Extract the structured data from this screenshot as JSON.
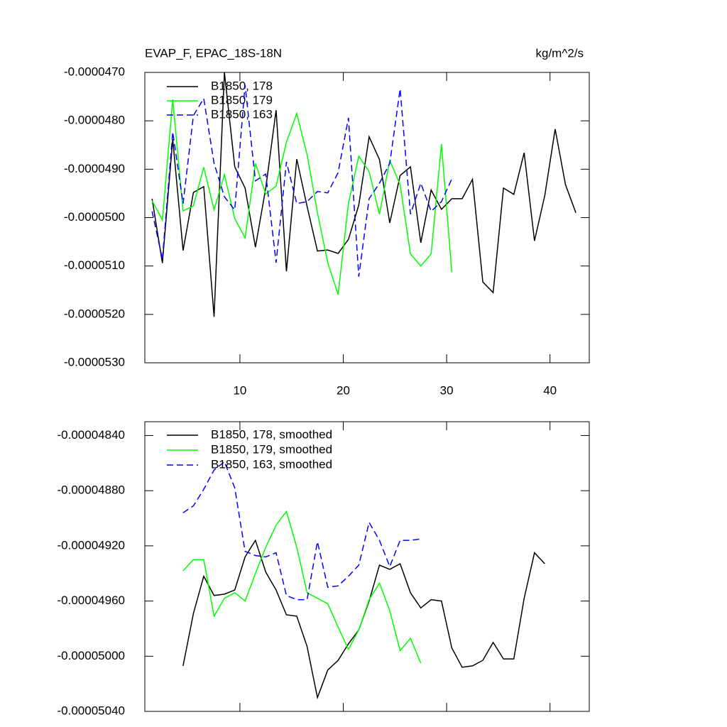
{
  "chart_data": [
    {
      "type": "line",
      "title": "EVAP_F, EPAC_18S-18N",
      "units": "kg/m^2/s",
      "x": [
        1.5,
        2.5,
        3.5,
        4.5,
        5.5,
        6.5,
        7.5,
        8.5,
        9.5,
        10.5,
        11.5,
        12.5,
        13.5,
        14.5,
        15.5,
        16.5,
        17.5,
        18.5,
        19.5,
        20.5,
        21.5,
        22.5,
        23.5,
        24.5,
        25.5,
        26.5,
        27.5,
        28.5,
        29.5,
        30.5,
        31.5,
        32.5,
        33.5,
        34.5,
        35.5,
        36.5,
        37.5,
        38.5,
        39.5,
        40.5,
        41.5,
        42.5
      ],
      "series": [
        {
          "name": "B1850, 178",
          "color": "#000000",
          "dash": false,
          "values": [
            -4.961e-05,
            -5.094e-05,
            -4.838e-05,
            -5.068e-05,
            -4.948e-05,
            -4.936e-05,
            -5.205e-05,
            -4.7e-05,
            -4.895e-05,
            -4.939e-05,
            -5.061e-05,
            -4.939e-05,
            -4.778e-05,
            -5.111e-05,
            -4.879e-05,
            -4.977e-05,
            -5.069e-05,
            -5.067e-05,
            -5.074e-05,
            -5.045e-05,
            -4.974e-05,
            -4.833e-05,
            -4.88e-05,
            -5.011e-05,
            -4.913e-05,
            -4.895e-05,
            -5.052e-05,
            -4.943e-05,
            -4.983e-05,
            -4.961e-05,
            -4.961e-05,
            -4.921e-05,
            -5.133e-05,
            -5.155e-05,
            -4.939e-05,
            -4.952e-05,
            -4.866e-05,
            -5.048e-05,
            -4.954e-05,
            -4.817e-05,
            -4.932e-05,
            -4.99e-05
          ]
        },
        {
          "name": "B1850, 179",
          "color": "#00ff00",
          "dash": false,
          "values": [
            -4.965e-05,
            -5.005e-05,
            -4.756e-05,
            -4.986e-05,
            -4.976e-05,
            -4.896e-05,
            -4.984e-05,
            -4.911e-05,
            -5.002e-05,
            -5.042e-05,
            -4.888e-05,
            -4.951e-05,
            -4.935e-05,
            -4.844e-05,
            -4.785e-05,
            -4.87e-05,
            -4.99e-05,
            -5.093e-05,
            -5.159e-05,
            -4.971e-05,
            -4.873e-05,
            -4.905e-05,
            -4.993e-05,
            -4.882e-05,
            -4.932e-05,
            -5.075e-05,
            -5.1e-05,
            -5.075e-05,
            -4.848e-05,
            -5.113e-05,
            null,
            null,
            null,
            null,
            null,
            null,
            null,
            null,
            null,
            null,
            null,
            null
          ]
        },
        {
          "name": "B1850, 163",
          "color": "#0000ff",
          "dash": true,
          "values": [
            -4.987e-05,
            -5.086e-05,
            -4.823e-05,
            -4.971e-05,
            -4.789e-05,
            -4.754e-05,
            -4.888e-05,
            -4.957e-05,
            -4.984e-05,
            -4.726e-05,
            -4.924e-05,
            -4.91e-05,
            -5.093e-05,
            -4.885e-05,
            -4.971e-05,
            -4.967e-05,
            -4.946e-05,
            -4.949e-05,
            -4.907e-05,
            -4.794e-05,
            -5.122e-05,
            -4.961e-05,
            -4.929e-05,
            -4.888e-05,
            -4.734e-05,
            -4.993e-05,
            -4.929e-05,
            -4.987e-05,
            -4.967e-05,
            -4.92e-05,
            null,
            null,
            null,
            null,
            null,
            null,
            null,
            null,
            null,
            null,
            null,
            null
          ]
        }
      ],
      "xlim": [
        0.8,
        43.8
      ],
      "xticks": [
        10,
        20,
        30,
        40
      ],
      "ylim": [
        -5.3e-05,
        -4.7e-05
      ],
      "yticks": [
        {
          "value": -5.3e-05,
          "label": "-0.0000530"
        },
        {
          "value": -5.2e-05,
          "label": "-0.0000520"
        },
        {
          "value": -5.1e-05,
          "label": "-0.0000510"
        },
        {
          "value": -5e-05,
          "label": "-0.0000500"
        },
        {
          "value": -4.9e-05,
          "label": "-0.0000490"
        },
        {
          "value": -4.8e-05,
          "label": "-0.0000480"
        },
        {
          "value": -4.7e-05,
          "label": "-0.0000470"
        }
      ],
      "legend": "top-left"
    },
    {
      "type": "line",
      "x": [
        4.5,
        5.5,
        6.5,
        7.5,
        8.5,
        9.5,
        10.5,
        11.5,
        12.5,
        13.5,
        14.5,
        15.5,
        16.5,
        17.5,
        18.5,
        19.5,
        20.5,
        21.5,
        22.5,
        23.5,
        24.5,
        25.5,
        26.5,
        27.5,
        28.5,
        29.5,
        30.5,
        31.5,
        32.5,
        33.5,
        34.5,
        35.5,
        36.5,
        37.5,
        38.5,
        39.5
      ],
      "series": [
        {
          "name": "B1850, 178, smoothed",
          "color": "#000000",
          "dash": false,
          "values": [
            -5.007e-05,
            -4.969e-05,
            -4.942e-05,
            -4.956e-05,
            -4.955e-05,
            -4.952e-05,
            -4.928e-05,
            -4.916e-05,
            -4.939e-05,
            -4.952e-05,
            -4.97e-05,
            -4.971e-05,
            -4.993e-05,
            -5.03e-05,
            -5.01e-05,
            -5.003e-05,
            -4.991e-05,
            -4.981e-05,
            -4.96e-05,
            -4.934e-05,
            -4.937e-05,
            -4.933e-05,
            -4.954e-05,
            -4.965e-05,
            -4.959e-05,
            -4.96e-05,
            -4.994e-05,
            -5.008e-05,
            -5.007e-05,
            -5.003e-05,
            -4.99e-05,
            -5.002e-05,
            -5.002e-05,
            -4.958e-05,
            -4.925e-05,
            -4.933e-05
          ]
        },
        {
          "name": "B1850, 179, smoothed",
          "color": "#00ff00",
          "dash": false,
          "values": [
            -4.938e-05,
            -4.93e-05,
            -4.93e-05,
            -4.971e-05,
            -4.958e-05,
            -4.954e-05,
            -4.96e-05,
            -4.94e-05,
            -4.921e-05,
            -4.905e-05,
            -4.895e-05,
            -4.921e-05,
            -4.954e-05,
            -4.958e-05,
            -4.962e-05,
            -4.979e-05,
            -4.995e-05,
            -4.981e-05,
            -4.959e-05,
            -4.947e-05,
            -4.967e-05,
            -4.996e-05,
            -4.987e-05,
            -5.005e-05,
            null,
            null,
            null,
            null,
            null,
            null,
            null,
            null,
            null,
            null,
            null,
            null
          ]
        },
        {
          "name": "B1850, 163, smoothed",
          "color": "#0000ff",
          "dash": true,
          "values": [
            -4.896e-05,
            -4.891e-05,
            -4.879e-05,
            -4.865e-05,
            -4.859e-05,
            -4.878e-05,
            -4.924e-05,
            -4.927e-05,
            -4.928e-05,
            -4.925e-05,
            -4.956e-05,
            -4.959e-05,
            -4.959e-05,
            -4.917e-05,
            -4.95e-05,
            -4.949e-05,
            -4.942e-05,
            -4.934e-05,
            -4.903e-05,
            -4.916e-05,
            -4.935e-05,
            -4.916e-05,
            -4.916e-05,
            -4.915e-05,
            null,
            null,
            null,
            null,
            null,
            null,
            null,
            null,
            null,
            null,
            null,
            null
          ]
        }
      ],
      "xlim": [
        0.8,
        43.8
      ],
      "xticks": [
        10,
        20,
        30,
        40
      ],
      "ylim": [
        -5.04e-05,
        -4.83e-05
      ],
      "yticks": [
        {
          "value": -5.04e-05,
          "label": "-0.00005040"
        },
        {
          "value": -5e-05,
          "label": "-0.00005000"
        },
        {
          "value": -4.96e-05,
          "label": "-0.00004960"
        },
        {
          "value": -4.92e-05,
          "label": "-0.00004920"
        },
        {
          "value": -4.88e-05,
          "label": "-0.00004880"
        },
        {
          "value": -4.84e-05,
          "label": "-0.00004840"
        }
      ],
      "legend": "top-left"
    }
  ]
}
